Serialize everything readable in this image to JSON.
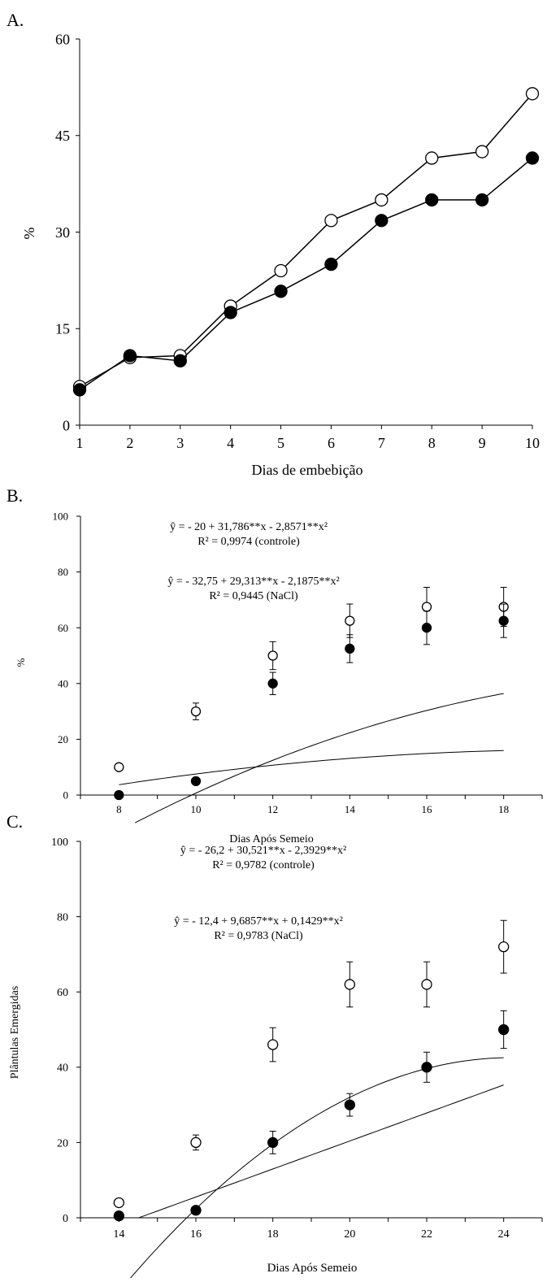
{
  "chart_data": [
    {
      "panel_label": "A.",
      "type": "line",
      "xlabel": "Dias de embebição",
      "ylabel": "%",
      "xlim": [
        1,
        10
      ],
      "ylim": [
        0,
        60
      ],
      "xticks": [
        1,
        2,
        3,
        4,
        5,
        6,
        7,
        8,
        9,
        10
      ],
      "yticks": [
        0,
        15,
        30,
        45,
        60
      ],
      "x": [
        1,
        2,
        3,
        4,
        5,
        6,
        7,
        8,
        9,
        10
      ],
      "series": [
        {
          "marker": "open",
          "values": [
            6,
            10.5,
            10.8,
            18.5,
            24,
            31.8,
            35,
            41.5,
            42.5,
            51.5
          ]
        },
        {
          "marker": "filled",
          "values": [
            5.5,
            10.8,
            10,
            17.5,
            20.8,
            25,
            31.8,
            35,
            35,
            41.5
          ]
        }
      ]
    },
    {
      "panel_label": "B.",
      "type": "scatter",
      "xlabel": "Dias Após Semeio",
      "ylabel": "%",
      "xlim": [
        7,
        19
      ],
      "ylim": [
        0,
        100
      ],
      "xticks": [
        8,
        10,
        12,
        14,
        16,
        18
      ],
      "yticks": [
        0,
        20,
        40,
        60,
        80,
        100
      ],
      "equations": [
        {
          "equation": "ŷ = - 20 + 31,786**x - 2,8571**x²",
          "r2": "R² = 0,9974 (controle)"
        },
        {
          "equation": "ŷ =  - 32,75 + 29,313**x - 2,1875**x²",
          "r2": "R² = 0,9445 (NaCl)"
        }
      ],
      "series": [
        {
          "marker": "open",
          "x": [
            8,
            10,
            12,
            14,
            16,
            18
          ],
          "values": [
            10,
            30,
            50,
            62.5,
            67.5,
            67.5
          ],
          "errors": [
            0,
            3,
            5,
            6,
            7,
            7
          ],
          "fit": {
            "x_range": [
              8,
              18
            ],
            "coef": [
              -18.7,
              3.5,
              -0.0875
            ]
          }
        },
        {
          "marker": "filled",
          "x": [
            8,
            10,
            12,
            14,
            16,
            18
          ],
          "values": [
            0,
            5,
            40,
            52.5,
            60,
            62.5
          ],
          "errors": [
            0,
            0,
            4,
            5,
            6,
            6
          ],
          "fit": {
            "x_range": [
              8.42,
              18
            ],
            "coef": [
              -86.6,
              11.1,
              -0.237
            ]
          }
        }
      ]
    },
    {
      "panel_label": "C.",
      "type": "scatter",
      "xlabel": "Dias Após Semeio",
      "ylabel": "Plântulas Emergidas",
      "xlim": [
        13,
        25
      ],
      "ylim": [
        0,
        100
      ],
      "xticks": [
        14,
        16,
        18,
        20,
        22,
        24
      ],
      "yticks": [
        0,
        20,
        40,
        60,
        80,
        100
      ],
      "equations": [
        {
          "equation": "ŷ =  - 26,2 + 30,521**x - 2,3929**x²",
          "r2": "R² = 0,9782 (controle)"
        },
        {
          "equation": "ŷ = - 12,4 + 9,6857**x + 0,1429**x²",
          "r2": "R² = 0,9783 (NaCl)"
        }
      ],
      "series": [
        {
          "marker": "open",
          "x": [
            14,
            16,
            18,
            20,
            22,
            24
          ],
          "values": [
            4,
            20,
            46,
            62,
            62,
            72
          ],
          "errors": [
            0,
            2,
            4.5,
            6,
            6,
            7
          ],
          "fit": {
            "x_range": [
              14,
              24
            ],
            "coef": [
              -307.2,
              28.9,
              -0.597
            ]
          }
        },
        {
          "marker": "filled",
          "x": [
            14,
            16,
            18,
            20,
            22,
            24
          ],
          "values": [
            0.5,
            2,
            20,
            30,
            40,
            50
          ],
          "errors": [
            0,
            0,
            3,
            3,
            4,
            5
          ],
          "fit": {
            "x_range": [
              14.5,
              24
            ],
            "coef": [
              -54,
              3.72,
              0
            ]
          }
        }
      ]
    }
  ]
}
